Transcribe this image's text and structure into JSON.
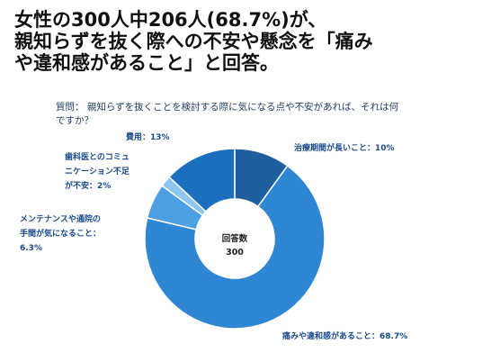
{
  "headline": {
    "line1": "女性の300人中206人(68.7%)が、",
    "line2": "親知らずを抜く際への不安や懸念を「痛み",
    "line3": "や違和感があること」と回答。"
  },
  "question": {
    "line1": "質問： 親知らずを抜くことを検討する際に気になる点や不安があれば、それは何",
    "line2": "ですか？"
  },
  "chart_data": {
    "type": "pie",
    "donut": true,
    "center_label": "回答数",
    "center_value": "300",
    "slices": [
      {
        "label": "治療期間が長いこと：10%",
        "value": 10,
        "color": "#1e5f9e"
      },
      {
        "label": "痛みや違和感があること：68.7%",
        "value": 68.7,
        "color": "#2f86d2"
      },
      {
        "label": "メンテナンスや通院の手間が気になること：6.3%",
        "label_lines": [
          "メンテナンスや通院の",
          "手間が気になること：",
          "6.3%"
        ],
        "value": 6.3,
        "color": "#4c9fe0"
      },
      {
        "label": "歯科医とのコミュニケーション不足が不安：2%",
        "label_lines": [
          "歯科医とのコミュ",
          "ニケーション不足",
          "が不安：2%"
        ],
        "value": 2,
        "color": "#8ec6ef"
      },
      {
        "label": "費用：13%",
        "value": 13,
        "color": "#1a70bf"
      }
    ]
  }
}
